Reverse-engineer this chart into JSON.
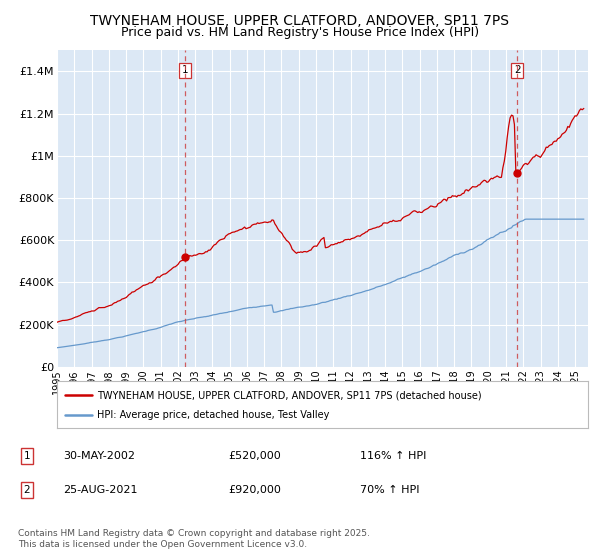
{
  "title_line1": "TWYNEHAM HOUSE, UPPER CLATFORD, ANDOVER, SP11 7PS",
  "title_line2": "Price paid vs. HM Land Registry's House Price Index (HPI)",
  "ylim": [
    0,
    1500000
  ],
  "yticks": [
    0,
    200000,
    400000,
    600000,
    800000,
    1000000,
    1200000,
    1400000
  ],
  "ytick_labels": [
    "£0",
    "£200K",
    "£400K",
    "£600K",
    "£800K",
    "£1M",
    "£1.2M",
    "£1.4M"
  ],
  "bg_color": "#dce8f5",
  "grid_color": "#ffffff",
  "red_color": "#cc0000",
  "blue_color": "#6699cc",
  "marker1_date": 2002.41,
  "marker1_price": 520000,
  "marker1_label": "30-MAY-2002",
  "marker1_pct": "116% ↑ HPI",
  "marker2_date": 2021.65,
  "marker2_price": 920000,
  "marker2_label": "25-AUG-2021",
  "marker2_pct": "70% ↑ HPI",
  "legend_line1": "TWYNEHAM HOUSE, UPPER CLATFORD, ANDOVER, SP11 7PS (detached house)",
  "legend_line2": "HPI: Average price, detached house, Test Valley",
  "footer": "Contains HM Land Registry data © Crown copyright and database right 2025.\nThis data is licensed under the Open Government Licence v3.0.",
  "title_fontsize": 10,
  "subtitle_fontsize": 9,
  "tick_fontsize": 8
}
